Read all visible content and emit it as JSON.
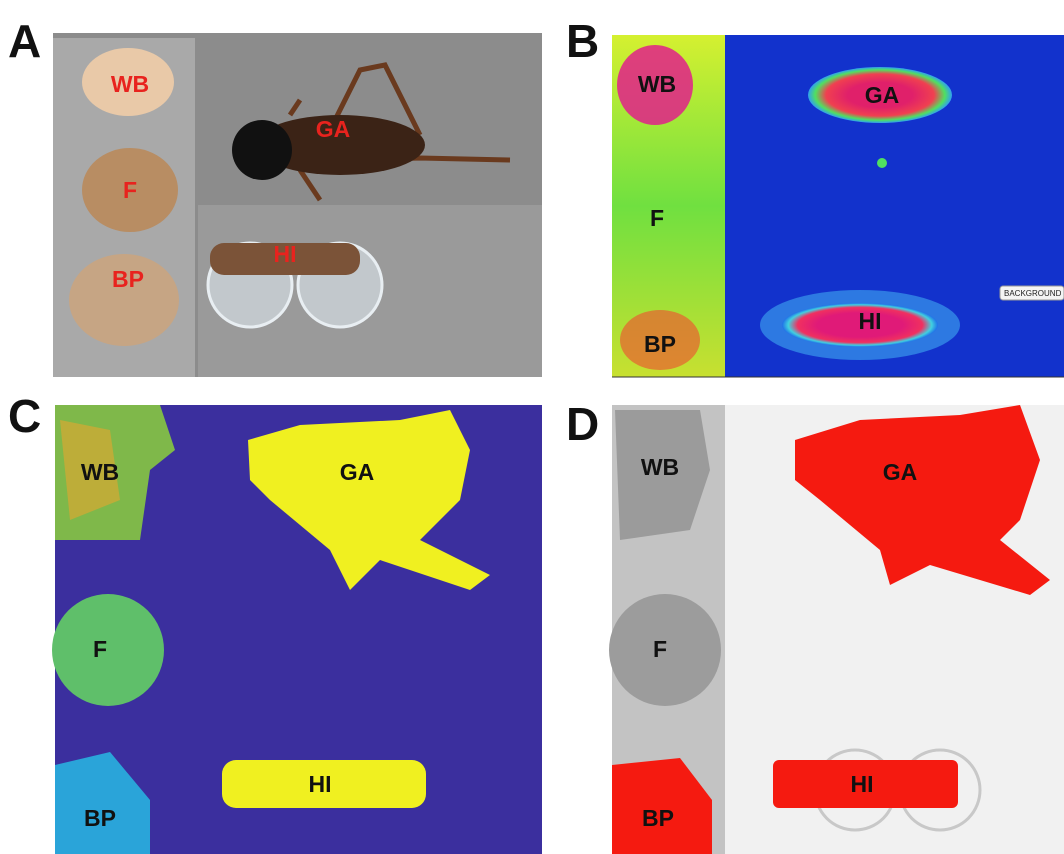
{
  "panels": [
    {
      "letter": "A",
      "labels": [
        "WB",
        "F",
        "BP",
        "GA",
        "HI"
      ]
    },
    {
      "letter": "B",
      "labels": [
        "WB",
        "F",
        "BP",
        "GA",
        "HI"
      ],
      "annotation": "BACKGROUND"
    },
    {
      "letter": "C",
      "labels": [
        "WB",
        "F",
        "BP",
        "GA",
        "HI"
      ]
    },
    {
      "letter": "D",
      "labels": [
        "WB",
        "F",
        "BP",
        "GA",
        "HI"
      ]
    }
  ]
}
